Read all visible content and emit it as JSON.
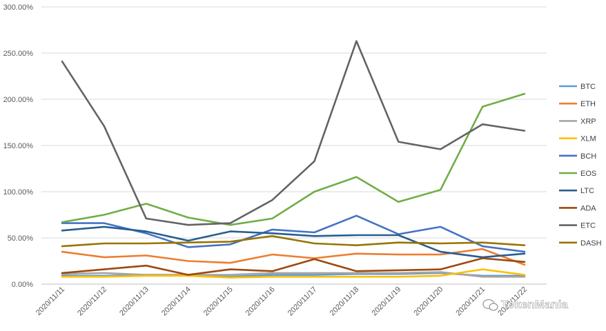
{
  "chart_data": {
    "type": "line",
    "title": "",
    "xlabel": "",
    "ylabel": "",
    "ylim": [
      0,
      300
    ],
    "y_ticks": [
      "0.00%",
      "50.00%",
      "100.00%",
      "150.00%",
      "200.00%",
      "250.00%",
      "300.00%"
    ],
    "grid": "horizontal",
    "legend_position": "right",
    "categories": [
      "2020/11/11",
      "2020/11/12",
      "2020/11/13",
      "2020/11/14",
      "2020/11/15",
      "2020/11/16",
      "2020/11/17",
      "2020/11/18",
      "2020/11/19",
      "2020/11/20",
      "2020/11/21",
      "2020/11/22"
    ],
    "series": [
      {
        "name": "BTC",
        "color": "#5B9BD5",
        "values": [
          9,
          9,
          10,
          10,
          8,
          10,
          10,
          11,
          11,
          12,
          9,
          9
        ]
      },
      {
        "name": "ETH",
        "color": "#ED7D31",
        "values": [
          35,
          29,
          31,
          25,
          23,
          32,
          28,
          33,
          32,
          32,
          38,
          21
        ]
      },
      {
        "name": "XRP",
        "color": "#A5A5A5",
        "values": [
          11,
          12,
          10,
          10,
          10,
          12,
          12,
          12,
          12,
          13,
          8,
          8
        ]
      },
      {
        "name": "XLM",
        "color": "#FFC000",
        "values": [
          8,
          8,
          9,
          9,
          7,
          8,
          8,
          8,
          8,
          9,
          16,
          10
        ]
      },
      {
        "name": "BCH",
        "color": "#4472C4",
        "values": [
          66,
          66,
          55,
          40,
          43,
          59,
          56,
          74,
          54,
          62,
          41,
          35
        ]
      },
      {
        "name": "EOS",
        "color": "#70AD47",
        "values": [
          67,
          75,
          87,
          72,
          64,
          71,
          100,
          116,
          89,
          102,
          192,
          206
        ]
      },
      {
        "name": "LTC",
        "color": "#255E91",
        "values": [
          58,
          62,
          57,
          47,
          57,
          55,
          52,
          53,
          53,
          35,
          29,
          33
        ]
      },
      {
        "name": "ADA",
        "color": "#9E480E",
        "values": [
          12,
          16,
          20,
          10,
          16,
          14,
          27,
          14,
          15,
          16,
          28,
          24
        ]
      },
      {
        "name": "ETC",
        "color": "#636363",
        "values": [
          241,
          171,
          71,
          64,
          66,
          91,
          133,
          263,
          154,
          146,
          173,
          166
        ]
      },
      {
        "name": "DASH",
        "color": "#997300",
        "values": [
          41,
          44,
          44,
          45,
          46,
          52,
          44,
          42,
          45,
          44,
          45,
          42
        ]
      }
    ]
  },
  "watermark": {
    "text": "TokenMania"
  }
}
